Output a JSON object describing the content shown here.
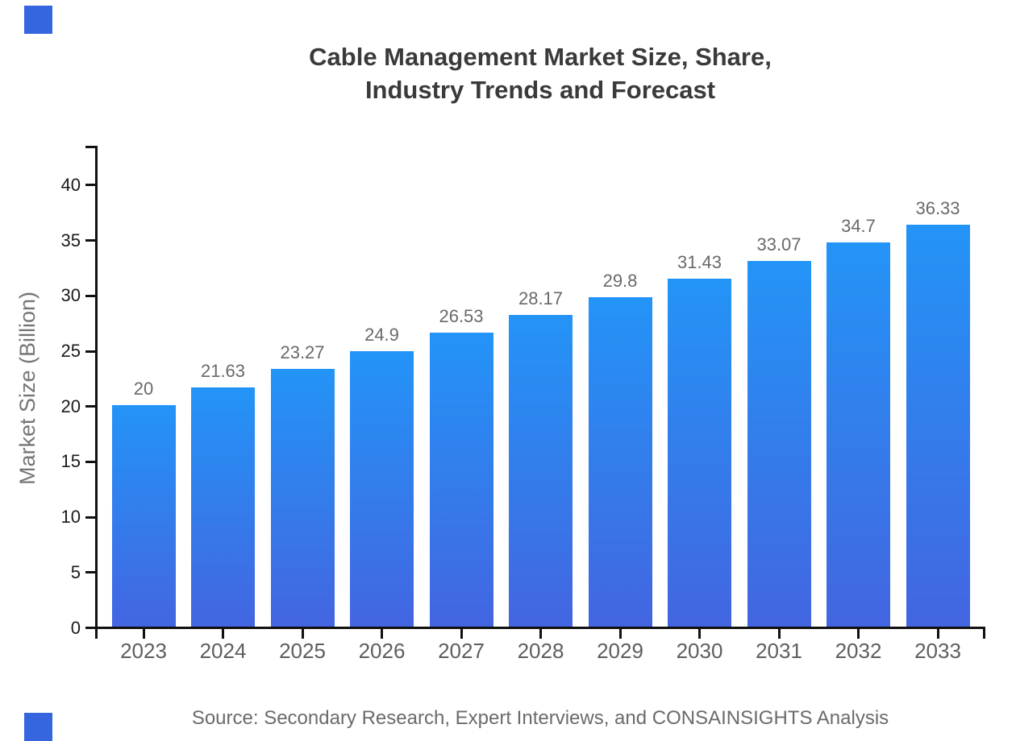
{
  "title": {
    "line1": "Cable Management Market Size, Share,",
    "line2": "Industry Trends and Forecast"
  },
  "source": "Source: Secondary Research, Expert Interviews, and CONSAINSIGHTS Analysis",
  "decoration": {
    "corner_square_color": "#3566e0"
  },
  "chart_data": {
    "type": "bar",
    "title": "Cable Management Market Size, Share, Industry Trends and Forecast",
    "categories": [
      "2023",
      "2024",
      "2025",
      "2026",
      "2027",
      "2028",
      "2029",
      "2030",
      "2031",
      "2032",
      "2033"
    ],
    "values": [
      20,
      21.63,
      23.27,
      24.9,
      26.53,
      28.17,
      29.8,
      31.43,
      33.07,
      34.7,
      36.33
    ],
    "value_labels": [
      "20",
      "21.63",
      "23.27",
      "24.9",
      "26.53",
      "28.17",
      "29.8",
      "31.43",
      "33.07",
      "34.7",
      "36.33"
    ],
    "xlabel": "",
    "ylabel": "Market Size (Billion)",
    "yticks": [
      0,
      5,
      10,
      15,
      20,
      25,
      30,
      35,
      40
    ],
    "ylim": [
      0,
      43.5
    ],
    "grid": false,
    "legend": null,
    "colors": {
      "bar_gradient_top": "#2394f7",
      "bar_gradient_bottom": "#4365e1",
      "axis": "#111111",
      "y_tick_label": "#1a1a1a",
      "x_tick_label": "#5e5e5e",
      "value_label": "#696969",
      "title": "#3a3a3a",
      "ylabel": "#757575",
      "source": "#6b6b6b"
    }
  }
}
